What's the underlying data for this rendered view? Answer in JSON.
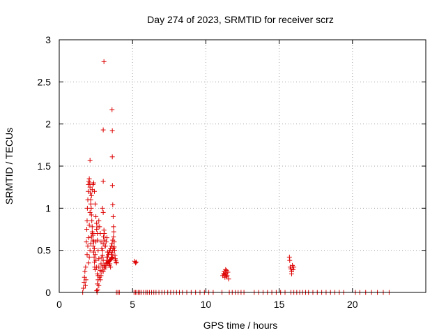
{
  "chart_data": {
    "type": "scatter",
    "title": "Day 274 of 2023, SRMTID for receiver scrz",
    "xlabel": "GPS time / hours",
    "ylabel": "SRMTID / TECUs",
    "xlim": [
      0,
      25
    ],
    "ylim": [
      0,
      3
    ],
    "x_ticks": [
      0,
      5,
      10,
      15,
      20
    ],
    "x_tick_labels": [
      "0",
      "5",
      "10",
      "15",
      "20"
    ],
    "y_ticks": [
      0,
      0.5,
      1,
      1.5,
      2,
      2.5,
      3
    ],
    "y_tick_labels": [
      "0",
      "0.5",
      "1",
      "1.5",
      "2",
      "2.5",
      "3"
    ],
    "grid": true,
    "marker": "plus",
    "series": [
      {
        "name": "SRMTID",
        "color": "#dd0000",
        "points": [
          [
            1.6,
            0.0
          ],
          [
            1.65,
            0.05
          ],
          [
            1.7,
            0.12
          ],
          [
            1.72,
            0.18
          ],
          [
            1.75,
            0.25
          ],
          [
            1.8,
            0.3
          ],
          [
            1.78,
            0.08
          ],
          [
            1.82,
            0.15
          ],
          [
            1.85,
            0.6
          ],
          [
            1.88,
            0.75
          ],
          [
            1.9,
            0.85
          ],
          [
            1.92,
            1.0
          ],
          [
            1.95,
            1.1
          ],
          [
            1.98,
            1.2
          ],
          [
            2.0,
            1.28
          ],
          [
            2.02,
            1.32
          ],
          [
            2.05,
            1.35
          ],
          [
            2.08,
            1.3
          ],
          [
            2.1,
            1.25
          ],
          [
            2.12,
            1.18
          ],
          [
            2.15,
            1.1
          ],
          [
            2.18,
            1.0
          ],
          [
            2.2,
            0.92
          ],
          [
            2.22,
            0.85
          ],
          [
            2.25,
            0.78
          ],
          [
            2.28,
            0.7
          ],
          [
            2.3,
            0.62
          ],
          [
            2.32,
            0.55
          ],
          [
            2.35,
            0.48
          ],
          [
            2.38,
            0.42
          ],
          [
            2.4,
            0.36
          ],
          [
            2.42,
            0.3
          ],
          [
            2.45,
            0.27
          ],
          [
            1.9,
            0.45
          ],
          [
            1.95,
            0.55
          ],
          [
            2.0,
            0.65
          ],
          [
            2.05,
            0.8
          ],
          [
            2.1,
            0.95
          ],
          [
            2.15,
            1.05
          ],
          [
            2.2,
            1.15
          ],
          [
            2.25,
            1.22
          ],
          [
            2.3,
            1.28
          ],
          [
            2.35,
            1.3
          ],
          [
            2.4,
            1.2
          ],
          [
            2.45,
            1.05
          ],
          [
            2.5,
            0.9
          ],
          [
            2.55,
            0.75
          ],
          [
            2.6,
            0.62
          ],
          [
            2.65,
            0.5
          ],
          [
            2.7,
            0.4
          ],
          [
            2.1,
            1.57
          ],
          [
            2.0,
            0.35
          ],
          [
            2.05,
            0.42
          ],
          [
            2.1,
            0.5
          ],
          [
            2.15,
            0.58
          ],
          [
            2.2,
            0.66
          ],
          [
            2.25,
            0.72
          ],
          [
            2.3,
            0.68
          ],
          [
            2.35,
            0.6
          ],
          [
            2.4,
            0.52
          ],
          [
            2.45,
            0.45
          ],
          [
            2.5,
            0.38
          ],
          [
            2.55,
            0.3
          ],
          [
            2.6,
            0.22
          ],
          [
            2.65,
            0.15
          ],
          [
            2.7,
            0.08
          ],
          [
            2.55,
            0.02
          ],
          [
            2.58,
            0.0
          ],
          [
            2.62,
            0.03
          ],
          [
            2.75,
            0.18
          ],
          [
            2.8,
            0.26
          ],
          [
            2.85,
            0.34
          ],
          [
            2.9,
            0.42
          ],
          [
            2.95,
            0.5
          ],
          [
            3.0,
            0.58
          ],
          [
            3.02,
            0.66
          ],
          [
            3.05,
            0.74
          ],
          [
            3.08,
            0.7
          ],
          [
            3.1,
            0.62
          ],
          [
            3.12,
            0.55
          ],
          [
            2.7,
            0.85
          ],
          [
            2.75,
            0.78
          ],
          [
            2.8,
            0.7
          ],
          [
            2.85,
            0.6
          ],
          [
            2.9,
            0.52
          ],
          [
            2.95,
            0.44
          ],
          [
            3.0,
            0.38
          ],
          [
            3.05,
            0.32
          ],
          [
            3.1,
            0.28
          ],
          [
            3.15,
            0.3
          ],
          [
            3.2,
            0.34
          ],
          [
            3.25,
            0.38
          ],
          [
            3.3,
            0.42
          ],
          [
            3.35,
            0.45
          ],
          [
            3.4,
            0.48
          ],
          [
            3.45,
            0.5
          ],
          [
            3.5,
            0.52
          ],
          [
            3.55,
            0.55
          ],
          [
            3.6,
            0.58
          ],
          [
            3.65,
            0.62
          ],
          [
            3.7,
            0.66
          ],
          [
            3.72,
            0.72
          ],
          [
            3.75,
            0.6
          ],
          [
            3.78,
            0.5
          ],
          [
            3.8,
            0.44
          ],
          [
            3.82,
            0.4
          ],
          [
            3.85,
            0.38
          ],
          [
            3.88,
            0.36
          ],
          [
            3.9,
            0.35
          ],
          [
            3.3,
            0.35
          ],
          [
            3.35,
            0.36
          ],
          [
            3.4,
            0.37
          ],
          [
            3.45,
            0.38
          ],
          [
            3.5,
            0.39
          ],
          [
            3.55,
            0.4
          ],
          [
            3.6,
            0.41
          ],
          [
            3.65,
            0.42
          ],
          [
            3.0,
            0.25
          ],
          [
            3.1,
            0.3
          ],
          [
            3.2,
            0.35
          ],
          [
            3.25,
            0.42
          ],
          [
            3.3,
            0.48
          ],
          [
            3.15,
            0.55
          ],
          [
            3.2,
            0.6
          ],
          [
            3.25,
            0.65
          ],
          [
            3.0,
            0.95
          ],
          [
            2.95,
            1.0
          ],
          [
            3.0,
            1.32
          ],
          [
            3.0,
            1.93
          ],
          [
            3.05,
            2.74
          ],
          [
            3.6,
            2.17
          ],
          [
            3.62,
            1.92
          ],
          [
            3.62,
            1.61
          ],
          [
            3.63,
            1.27
          ],
          [
            3.65,
            1.04
          ],
          [
            3.68,
            0.9
          ],
          [
            3.7,
            0.78
          ],
          [
            3.55,
            0.45
          ],
          [
            3.6,
            0.47
          ],
          [
            3.65,
            0.5
          ],
          [
            3.7,
            0.52
          ],
          [
            3.75,
            0.54
          ],
          [
            3.5,
            0.3
          ],
          [
            3.4,
            0.32
          ],
          [
            3.45,
            0.34
          ],
          [
            3.9,
            0.0
          ],
          [
            4.0,
            0.0
          ],
          [
            4.1,
            0.0
          ],
          [
            2.6,
            0.1
          ],
          [
            2.65,
            0.2
          ],
          [
            2.7,
            0.3
          ],
          [
            2.8,
            0.15
          ],
          [
            2.85,
            0.2
          ],
          [
            2.9,
            0.25
          ],
          [
            2.95,
            0.3
          ],
          [
            2.5,
            0.6
          ],
          [
            2.6,
            0.7
          ],
          [
            2.65,
            0.78
          ],
          [
            2.55,
            0.82
          ],
          [
            5.15,
            0.37
          ],
          [
            5.2,
            0.35
          ],
          [
            5.25,
            0.36
          ],
          [
            5.1,
            0.0
          ],
          [
            5.2,
            0.0
          ],
          [
            5.3,
            0.0
          ],
          [
            5.4,
            0.0
          ],
          [
            5.5,
            0.0
          ],
          [
            5.6,
            0.0
          ],
          [
            5.75,
            0.0
          ],
          [
            5.9,
            0.0
          ],
          [
            6.0,
            0.0
          ],
          [
            6.15,
            0.0
          ],
          [
            6.3,
            0.0
          ],
          [
            6.45,
            0.0
          ],
          [
            6.6,
            0.0
          ],
          [
            6.8,
            0.0
          ],
          [
            7.0,
            0.0
          ],
          [
            7.2,
            0.0
          ],
          [
            7.4,
            0.0
          ],
          [
            7.6,
            0.0
          ],
          [
            7.8,
            0.0
          ],
          [
            8.0,
            0.0
          ],
          [
            8.2,
            0.0
          ],
          [
            8.4,
            0.0
          ],
          [
            8.7,
            0.0
          ],
          [
            9.0,
            0.0
          ],
          [
            9.3,
            0.0
          ],
          [
            9.6,
            0.0
          ],
          [
            9.9,
            0.0
          ],
          [
            10.2,
            0.0
          ],
          [
            10.5,
            0.0
          ],
          [
            11.1,
            0.0
          ],
          [
            11.15,
            0.2
          ],
          [
            11.2,
            0.22
          ],
          [
            11.25,
            0.25
          ],
          [
            11.3,
            0.18
          ],
          [
            11.35,
            0.23
          ],
          [
            11.4,
            0.26
          ],
          [
            11.45,
            0.2
          ],
          [
            11.5,
            0.24
          ],
          [
            11.55,
            0.16
          ],
          [
            11.3,
            0.21
          ],
          [
            11.4,
            0.19
          ],
          [
            11.35,
            0.27
          ],
          [
            11.6,
            0.0
          ],
          [
            11.8,
            0.0
          ],
          [
            12.0,
            0.0
          ],
          [
            12.2,
            0.0
          ],
          [
            12.4,
            0.0
          ],
          [
            12.6,
            0.0
          ],
          [
            13.3,
            0.0
          ],
          [
            13.6,
            0.0
          ],
          [
            13.9,
            0.0
          ],
          [
            14.2,
            0.0
          ],
          [
            14.5,
            0.0
          ],
          [
            14.8,
            0.0
          ],
          [
            15.1,
            0.0
          ],
          [
            15.4,
            0.0
          ],
          [
            15.7,
            0.42
          ],
          [
            15.72,
            0.38
          ],
          [
            15.75,
            0.3
          ],
          [
            15.8,
            0.28
          ],
          [
            15.85,
            0.25
          ],
          [
            15.9,
            0.32
          ],
          [
            15.95,
            0.27
          ],
          [
            16.0,
            0.3
          ],
          [
            15.85,
            0.22
          ],
          [
            15.8,
            0.0
          ],
          [
            16.0,
            0.0
          ],
          [
            16.2,
            0.0
          ],
          [
            16.4,
            0.0
          ],
          [
            16.6,
            0.0
          ],
          [
            16.8,
            0.0
          ],
          [
            17.0,
            0.0
          ],
          [
            17.3,
            0.0
          ],
          [
            17.6,
            0.0
          ],
          [
            17.9,
            0.0
          ],
          [
            18.2,
            0.0
          ],
          [
            18.5,
            0.0
          ],
          [
            18.8,
            0.0
          ],
          [
            19.1,
            0.0
          ],
          [
            19.4,
            0.0
          ],
          [
            20.2,
            0.0
          ],
          [
            20.5,
            0.0
          ],
          [
            20.9,
            0.0
          ],
          [
            21.3,
            0.0
          ],
          [
            21.7,
            0.0
          ],
          [
            22.1,
            0.0
          ],
          [
            22.5,
            0.0
          ]
        ]
      }
    ]
  }
}
